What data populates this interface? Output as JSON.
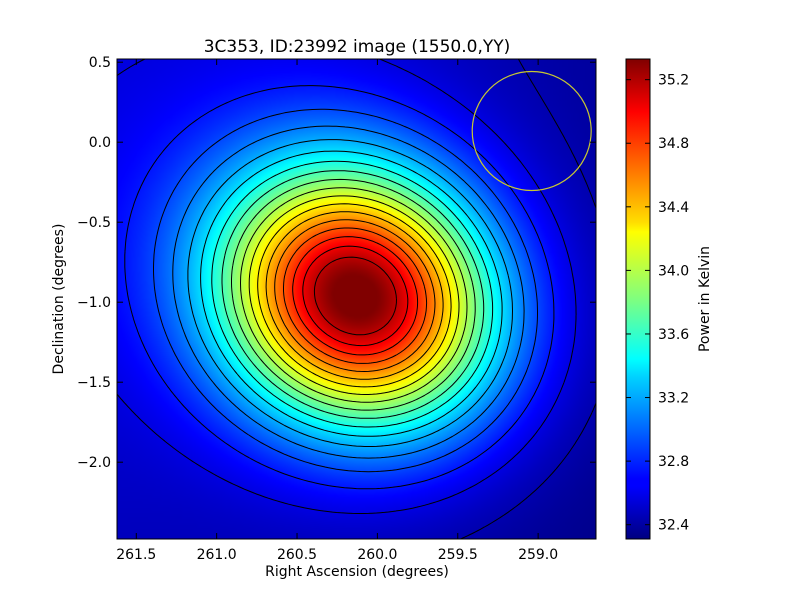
{
  "chart_data": {
    "type": "heatmap",
    "title": "3C353, ID:23992 image (1550.0,YY)",
    "xlabel": "Right Ascension (degrees)",
    "ylabel": "Declination (degrees)",
    "colorbar_label": "Power in Kelvin",
    "colormap": "jet",
    "xlim": [
      261.62,
      258.64
    ],
    "ylim": [
      -2.48,
      0.52
    ],
    "x_ticks": [
      {
        "value": 261.5,
        "label": "261.5"
      },
      {
        "value": 261.0,
        "label": "261.0"
      },
      {
        "value": 260.5,
        "label": "260.5"
      },
      {
        "value": 260.0,
        "label": "260.0"
      },
      {
        "value": 259.5,
        "label": "259.5"
      },
      {
        "value": 259.0,
        "label": "259.0"
      }
    ],
    "y_ticks": [
      {
        "value": 0.5,
        "label": "0.5"
      },
      {
        "value": 0.0,
        "label": "0.0"
      },
      {
        "value": -0.5,
        "label": "−0.5"
      },
      {
        "value": -1.0,
        "label": "−1.0"
      },
      {
        "value": -1.5,
        "label": "−1.5"
      },
      {
        "value": -2.0,
        "label": "−2.0"
      }
    ],
    "colorbar_range": [
      32.31,
      35.33
    ],
    "colorbar_ticks": [
      {
        "value": 32.4,
        "label": "32.4"
      },
      {
        "value": 32.8,
        "label": "32.8"
      },
      {
        "value": 33.2,
        "label": "33.2"
      },
      {
        "value": 33.6,
        "label": "33.6"
      },
      {
        "value": 34.0,
        "label": "34.0"
      },
      {
        "value": 34.4,
        "label": "34.4"
      },
      {
        "value": 34.8,
        "label": "34.8"
      },
      {
        "value": 35.2,
        "label": "35.2"
      }
    ],
    "peak": {
      "ra": 260.12,
      "dec": -0.97,
      "value": 35.33
    },
    "beam_circle": {
      "ra": 259.04,
      "dec": 0.07,
      "radius_deg": 0.37,
      "color": "#c8c832"
    },
    "contour_levels": [
      32.45,
      32.6,
      32.75,
      32.9,
      33.05,
      33.2,
      33.35,
      33.5,
      33.65,
      33.8,
      33.95,
      34.1,
      34.25,
      34.4,
      34.55,
      34.7,
      34.85,
      35.0,
      35.15
    ]
  }
}
